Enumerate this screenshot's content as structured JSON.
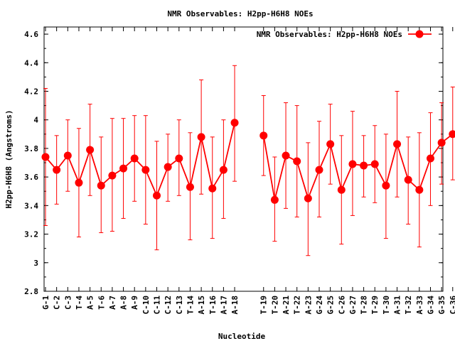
{
  "chart_data": {
    "type": "line",
    "title": "NMR Observables: H2pp-H6H8 NOEs",
    "xlabel": "Nucleotide",
    "ylabel": "H2pp-H6H8 (Angstroms)",
    "ylim": [
      2.8,
      4.65
    ],
    "yticks": [
      "2.8",
      "3",
      "3.2",
      "3.4",
      "3.6",
      "3.8",
      "4",
      "4.2",
      "4.4",
      "4.6"
    ],
    "grid": false,
    "legend_position": "top-right",
    "color": "#ff0000",
    "categories": [
      "G-1",
      "C-2",
      "C-3",
      "T-4",
      "A-5",
      "T-6",
      "A-7",
      "A-8",
      "A-9",
      "C-10",
      "C-11",
      "C-12",
      "C-13",
      "T-14",
      "A-15",
      "T-16",
      "A-17",
      "A-18",
      "T-19",
      "T-20",
      "A-21",
      "T-22",
      "A-23",
      "G-24",
      "G-25",
      "C-26",
      "G-27",
      "T-28",
      "T-29",
      "T-30",
      "A-31",
      "T-32",
      "A-33",
      "G-34",
      "G-35",
      "C-36"
    ],
    "series": [
      {
        "name": "NMR Observables: H2pp-H6H8 NOEs",
        "segments": [
          [
            {
              "x": "G-1",
              "y": 3.74,
              "ylow": 3.26,
              "yhigh": 4.22
            },
            {
              "x": "C-2",
              "y": 3.65,
              "ylow": 3.41,
              "yhigh": 3.89
            },
            {
              "x": "C-3",
              "y": 3.75,
              "ylow": 3.5,
              "yhigh": 4.0
            },
            {
              "x": "T-4",
              "y": 3.56,
              "ylow": 3.18,
              "yhigh": 3.94
            },
            {
              "x": "A-5",
              "y": 3.79,
              "ylow": 3.47,
              "yhigh": 4.11
            },
            {
              "x": "T-6",
              "y": 3.54,
              "ylow": 3.21,
              "yhigh": 3.88
            },
            {
              "x": "A-7",
              "y": 3.61,
              "ylow": 3.22,
              "yhigh": 4.01
            },
            {
              "x": "A-8",
              "y": 3.66,
              "ylow": 3.31,
              "yhigh": 4.01
            },
            {
              "x": "A-9",
              "y": 3.73,
              "ylow": 3.43,
              "yhigh": 4.03
            },
            {
              "x": "C-10",
              "y": 3.65,
              "ylow": 3.27,
              "yhigh": 4.03
            },
            {
              "x": "C-11",
              "y": 3.47,
              "ylow": 3.09,
              "yhigh": 3.85
            },
            {
              "x": "C-12",
              "y": 3.67,
              "ylow": 3.43,
              "yhigh": 3.9
            },
            {
              "x": "C-13",
              "y": 3.73,
              "ylow": 3.47,
              "yhigh": 4.0
            },
            {
              "x": "T-14",
              "y": 3.53,
              "ylow": 3.16,
              "yhigh": 3.91
            },
            {
              "x": "A-15",
              "y": 3.88,
              "ylow": 3.48,
              "yhigh": 4.28
            },
            {
              "x": "T-16",
              "y": 3.52,
              "ylow": 3.17,
              "yhigh": 3.88
            },
            {
              "x": "A-17",
              "y": 3.65,
              "ylow": 3.31,
              "yhigh": 4.0
            },
            {
              "x": "A-18",
              "y": 3.98,
              "ylow": 3.57,
              "yhigh": 4.38
            }
          ],
          [
            {
              "x": "T-19",
              "y": 3.89,
              "ylow": 3.61,
              "yhigh": 4.17
            },
            {
              "x": "T-20",
              "y": 3.44,
              "ylow": 3.15,
              "yhigh": 3.74
            },
            {
              "x": "A-21",
              "y": 3.75,
              "ylow": 3.38,
              "yhigh": 4.12
            },
            {
              "x": "T-22",
              "y": 3.71,
              "ylow": 3.32,
              "yhigh": 4.1
            },
            {
              "x": "A-23",
              "y": 3.45,
              "ylow": 3.05,
              "yhigh": 3.84
            },
            {
              "x": "G-24",
              "y": 3.65,
              "ylow": 3.32,
              "yhigh": 3.99
            },
            {
              "x": "G-25",
              "y": 3.83,
              "ylow": 3.55,
              "yhigh": 4.11
            },
            {
              "x": "C-26",
              "y": 3.51,
              "ylow": 3.13,
              "yhigh": 3.89
            },
            {
              "x": "G-27",
              "y": 3.69,
              "ylow": 3.33,
              "yhigh": 4.06
            },
            {
              "x": "T-28",
              "y": 3.68,
              "ylow": 3.46,
              "yhigh": 3.89
            },
            {
              "x": "T-29",
              "y": 3.69,
              "ylow": 3.42,
              "yhigh": 3.96
            },
            {
              "x": "T-30",
              "y": 3.54,
              "ylow": 3.17,
              "yhigh": 3.9
            },
            {
              "x": "A-31",
              "y": 3.83,
              "ylow": 3.46,
              "yhigh": 4.2
            },
            {
              "x": "T-32",
              "y": 3.58,
              "ylow": 3.27,
              "yhigh": 3.88
            },
            {
              "x": "A-33",
              "y": 3.51,
              "ylow": 3.11,
              "yhigh": 3.91
            },
            {
              "x": "G-34",
              "y": 3.73,
              "ylow": 3.4,
              "yhigh": 4.05
            },
            {
              "x": "G-35",
              "y": 3.84,
              "ylow": 3.55,
              "yhigh": 4.12
            },
            {
              "x": "C-36",
              "y": 3.9,
              "ylow": 3.58,
              "yhigh": 4.23
            }
          ]
        ]
      }
    ]
  }
}
